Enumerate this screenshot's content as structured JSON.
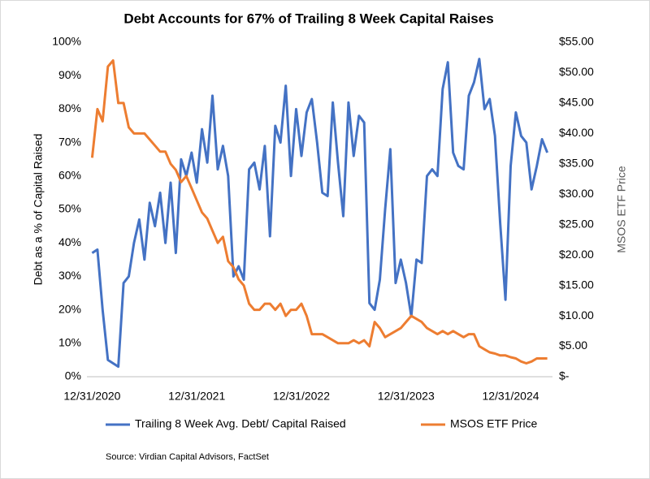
{
  "chart_data": {
    "type": "line",
    "title": "Debt Accounts for 67% of Trailing 8 Week Capital Raises",
    "y_label": "Debt as a % of Capital Raised",
    "y2_label": "MSOS ETF Price",
    "source": "Source: Virdian Capital Advisors, FactSet",
    "x": [
      2021,
      2021.05,
      2021.1,
      2021.15,
      2021.2,
      2021.25,
      2021.3,
      2021.35,
      2021.4,
      2021.45,
      2021.5,
      2021.55,
      2021.6,
      2021.65,
      2021.7,
      2021.75,
      2021.8,
      2021.85,
      2021.9,
      2021.95,
      2022,
      2022.05,
      2022.1,
      2022.15,
      2022.2,
      2022.25,
      2022.3,
      2022.35,
      2022.4,
      2022.45,
      2022.5,
      2022.55,
      2022.6,
      2022.65,
      2022.7,
      2022.75,
      2022.8,
      2022.85,
      2022.9,
      2022.95,
      2023,
      2023.05,
      2023.1,
      2023.15,
      2023.2,
      2023.25,
      2023.3,
      2023.35,
      2023.4,
      2023.45,
      2023.5,
      2023.55,
      2023.6,
      2023.65,
      2023.7,
      2023.75,
      2023.8,
      2023.85,
      2023.9,
      2023.95,
      2024,
      2024.05,
      2024.1,
      2024.15,
      2024.2,
      2024.25,
      2024.3,
      2024.35,
      2024.4,
      2024.45,
      2024.5,
      2024.55,
      2024.6,
      2024.65,
      2024.7,
      2024.75,
      2024.8,
      2024.85,
      2024.9,
      2024.95,
      2025,
      2025.05,
      2025.1,
      2025.15,
      2025.2,
      2025.25,
      2025.3,
      2025.35
    ],
    "xlim": [
      2020.95,
      2025.4
    ],
    "xticks": [
      {
        "value": 2021,
        "label": "12/31/2020"
      },
      {
        "value": 2022,
        "label": "12/31/2021"
      },
      {
        "value": 2023,
        "label": "12/31/2022"
      },
      {
        "value": 2024,
        "label": "12/31/2023"
      },
      {
        "value": 2025,
        "label": "12/31/2024"
      }
    ],
    "ylim": [
      0,
      100
    ],
    "yticks": [
      {
        "value": 0,
        "label": "0%"
      },
      {
        "value": 10,
        "label": "10%"
      },
      {
        "value": 20,
        "label": "20%"
      },
      {
        "value": 30,
        "label": "30%"
      },
      {
        "value": 40,
        "label": "40%"
      },
      {
        "value": 50,
        "label": "50%"
      },
      {
        "value": 60,
        "label": "60%"
      },
      {
        "value": 70,
        "label": "70%"
      },
      {
        "value": 80,
        "label": "80%"
      },
      {
        "value": 90,
        "label": "90%"
      },
      {
        "value": 100,
        "label": "100%"
      }
    ],
    "y2lim": [
      0,
      55
    ],
    "y2ticks": [
      {
        "value": 0,
        "label": "$-"
      },
      {
        "value": 5,
        "label": "$5.00"
      },
      {
        "value": 10,
        "label": "$10.00"
      },
      {
        "value": 15,
        "label": "$15.00"
      },
      {
        "value": 20,
        "label": "$20.00"
      },
      {
        "value": 25,
        "label": "$25.00"
      },
      {
        "value": 30,
        "label": "$30.00"
      },
      {
        "value": 35,
        "label": "$35.00"
      },
      {
        "value": 40,
        "label": "$40.00"
      },
      {
        "value": 45,
        "label": "$45.00"
      },
      {
        "value": 50,
        "label": "$50.00"
      },
      {
        "value": 55,
        "label": "$55.00"
      }
    ],
    "series": [
      {
        "name": "Trailing 8 Week Avg. Debt/ Capital Raised",
        "color": "#4472c4",
        "values": [
          37,
          38,
          20,
          5,
          4,
          3,
          28,
          30,
          40,
          47,
          35,
          52,
          45,
          55,
          40,
          58,
          37,
          65,
          60,
          67,
          58,
          74,
          64,
          84,
          62,
          69,
          60,
          30,
          33,
          29,
          62,
          64,
          56,
          69,
          42,
          75,
          70,
          87,
          60,
          80,
          66,
          79,
          83,
          70,
          55,
          54,
          82,
          64,
          48,
          82,
          66,
          78,
          76,
          22,
          20,
          29,
          50,
          68,
          28,
          35,
          28,
          18,
          35,
          34,
          60,
          62,
          60,
          86,
          94,
          67,
          63,
          62,
          84,
          88,
          95,
          80,
          83,
          72,
          46,
          23,
          63,
          79,
          72,
          70,
          56,
          63,
          71,
          67
        ]
      },
      {
        "name": "MSOS ETF Price",
        "color": "#ed7d31",
        "axis": "y2",
        "values": [
          36,
          44,
          42,
          51,
          52,
          45,
          45,
          41,
          40,
          40,
          40,
          39,
          38,
          37,
          37,
          35,
          34,
          32,
          33,
          31,
          29,
          27,
          26,
          24,
          22,
          23,
          19,
          18,
          16,
          15,
          12,
          11,
          11,
          12,
          12,
          11,
          12,
          10,
          11,
          11,
          12,
          10,
          7,
          7,
          7,
          6.5,
          6,
          5.5,
          5.5,
          5.5,
          6,
          5.5,
          6,
          5,
          9,
          8,
          6.5,
          7,
          7.5,
          8,
          9,
          10,
          9.5,
          9,
          8,
          7.5,
          7,
          7.5,
          7,
          7.5,
          7,
          6.5,
          7,
          7,
          5,
          4.5,
          4,
          3.8,
          3.5,
          3.5,
          3.2,
          3,
          2.5,
          2.2,
          2.5,
          3,
          3,
          3
        ]
      }
    ]
  }
}
